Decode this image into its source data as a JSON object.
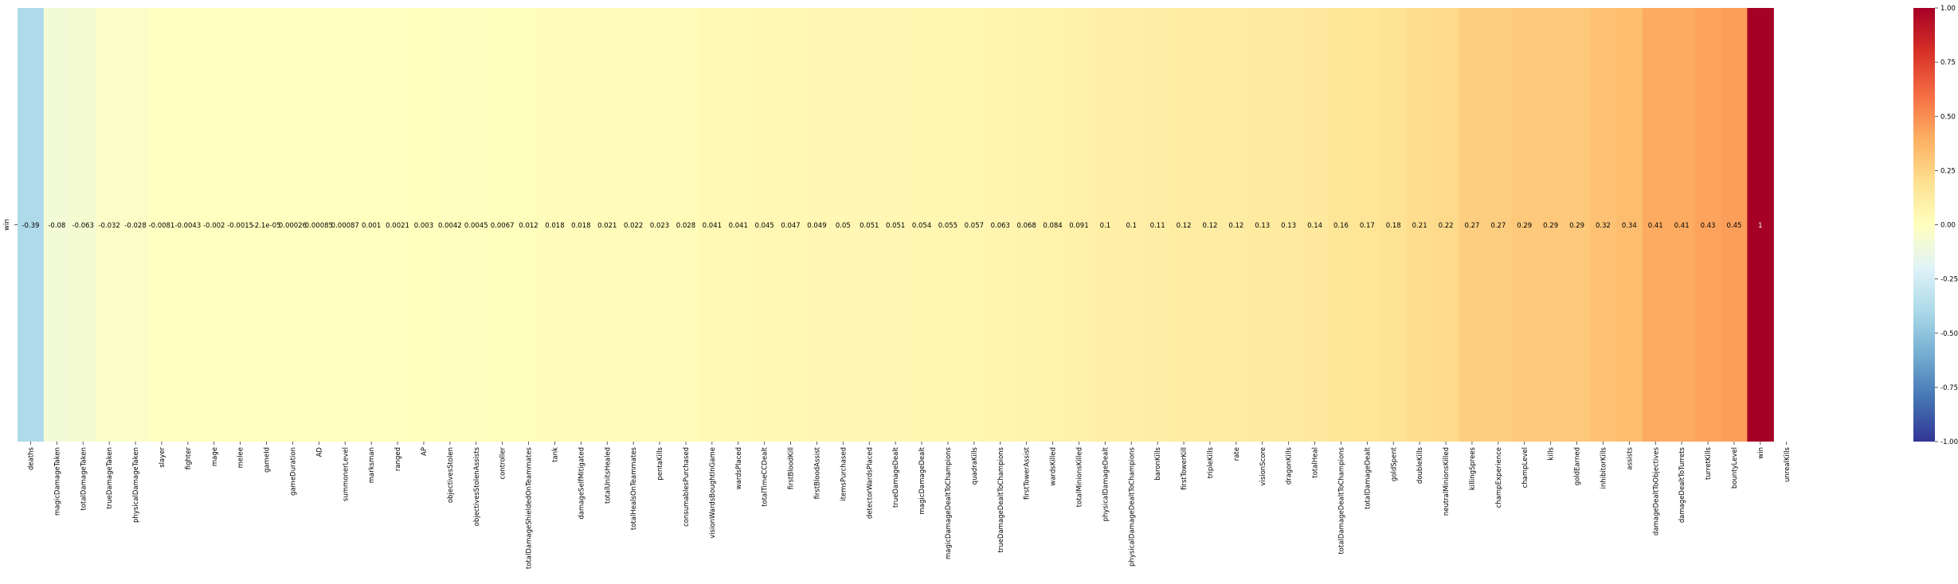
{
  "chart_data": {
    "type": "heatmap",
    "row_label": "win",
    "columns": [
      {
        "name": "deaths",
        "value": -0.39,
        "label": "-0.39"
      },
      {
        "name": "magicDamageTaken",
        "value": -0.08,
        "label": "-0.08"
      },
      {
        "name": "totalDamageTaken",
        "value": -0.063,
        "label": "-0.063"
      },
      {
        "name": "trueDamageTaken",
        "value": -0.032,
        "label": "-0.032"
      },
      {
        "name": "physicalDamageTaken",
        "value": -0.028,
        "label": "-0.028"
      },
      {
        "name": "slayer",
        "value": -0.0081,
        "label": "-0.0081"
      },
      {
        "name": "fighter",
        "value": -0.0043,
        "label": "-0.0043"
      },
      {
        "name": "mage",
        "value": -0.002,
        "label": "-0.002"
      },
      {
        "name": "melee",
        "value": -0.0015,
        "label": "-0.0015"
      },
      {
        "name": "gameId",
        "value": -2.1e-05,
        "label": "-2.1e-05"
      },
      {
        "name": "gameDuration",
        "value": 0.00026,
        "label": "0.00026"
      },
      {
        "name": "AD",
        "value": 0.00085,
        "label": "0.00085"
      },
      {
        "name": "summonerLevel",
        "value": 0.00087,
        "label": "0.00087"
      },
      {
        "name": "marksman",
        "value": 0.001,
        "label": "0.001"
      },
      {
        "name": "ranged",
        "value": 0.0021,
        "label": "0.0021"
      },
      {
        "name": "AP",
        "value": 0.003,
        "label": "0.003"
      },
      {
        "name": "objectivesStolen",
        "value": 0.0042,
        "label": "0.0042"
      },
      {
        "name": "objectivesStolenAssists",
        "value": 0.0045,
        "label": "0.0045"
      },
      {
        "name": "controller",
        "value": 0.0067,
        "label": "0.0067"
      },
      {
        "name": "totalDamageShieldedOnTeammates",
        "value": 0.012,
        "label": "0.012"
      },
      {
        "name": "tank",
        "value": 0.018,
        "label": "0.018"
      },
      {
        "name": "damageSelfMitigated",
        "value": 0.018,
        "label": "0.018"
      },
      {
        "name": "totalUnitsHealed",
        "value": 0.021,
        "label": "0.021"
      },
      {
        "name": "totalHealsOnTeammates",
        "value": 0.022,
        "label": "0.022"
      },
      {
        "name": "pentaKills",
        "value": 0.023,
        "label": "0.023"
      },
      {
        "name": "consumablesPurchased",
        "value": 0.028,
        "label": "0.028"
      },
      {
        "name": "visionWardsBoughtInGame",
        "value": 0.041,
        "label": "0.041"
      },
      {
        "name": "wardsPlaced",
        "value": 0.041,
        "label": "0.041"
      },
      {
        "name": "totalTimeCCDealt",
        "value": 0.045,
        "label": "0.045"
      },
      {
        "name": "firstBloodKill",
        "value": 0.047,
        "label": "0.047"
      },
      {
        "name": "firstBloodAssist",
        "value": 0.049,
        "label": "0.049"
      },
      {
        "name": "itemsPurchased",
        "value": 0.05,
        "label": "0.05"
      },
      {
        "name": "detectorWardsPlaced",
        "value": 0.051,
        "label": "0.051"
      },
      {
        "name": "trueDamageDealt",
        "value": 0.051,
        "label": "0.051"
      },
      {
        "name": "magicDamageDealt",
        "value": 0.054,
        "label": "0.054"
      },
      {
        "name": "magicDamageDealtToChampions",
        "value": 0.055,
        "label": "0.055"
      },
      {
        "name": "quadraKills",
        "value": 0.057,
        "label": "0.057"
      },
      {
        "name": "trueDamageDealtToChampions",
        "value": 0.063,
        "label": "0.063"
      },
      {
        "name": "firstTowerAssist",
        "value": 0.068,
        "label": "0.068"
      },
      {
        "name": "wardsKilled",
        "value": 0.084,
        "label": "0.084"
      },
      {
        "name": "totalMinionsKilled",
        "value": 0.091,
        "label": "0.091"
      },
      {
        "name": "physicalDamageDealt",
        "value": 0.1,
        "label": "0.1"
      },
      {
        "name": "physicalDamageDealtToChampions",
        "value": 0.1,
        "label": "0.1"
      },
      {
        "name": "baronKills",
        "value": 0.11,
        "label": "0.11"
      },
      {
        "name": "firstTowerKill",
        "value": 0.12,
        "label": "0.12"
      },
      {
        "name": "tripleKills",
        "value": 0.12,
        "label": "0.12"
      },
      {
        "name": "rate",
        "value": 0.12,
        "label": "0.12"
      },
      {
        "name": "visionScore",
        "value": 0.13,
        "label": "0.13"
      },
      {
        "name": "dragonKills",
        "value": 0.13,
        "label": "0.13"
      },
      {
        "name": "totalHeal",
        "value": 0.14,
        "label": "0.14"
      },
      {
        "name": "totalDamageDealtToChampions",
        "value": 0.16,
        "label": "0.16"
      },
      {
        "name": "totalDamageDealt",
        "value": 0.17,
        "label": "0.17"
      },
      {
        "name": "goldSpent",
        "value": 0.18,
        "label": "0.18"
      },
      {
        "name": "doubleKills",
        "value": 0.21,
        "label": "0.21"
      },
      {
        "name": "neutralMinionsKilled",
        "value": 0.22,
        "label": "0.22"
      },
      {
        "name": "killingSprees",
        "value": 0.27,
        "label": "0.27"
      },
      {
        "name": "champExperience",
        "value": 0.27,
        "label": "0.27"
      },
      {
        "name": "champLevel",
        "value": 0.29,
        "label": "0.29"
      },
      {
        "name": "kills",
        "value": 0.29,
        "label": "0.29"
      },
      {
        "name": "goldEarned",
        "value": 0.29,
        "label": "0.29"
      },
      {
        "name": "inhibitorKills",
        "value": 0.32,
        "label": "0.32"
      },
      {
        "name": "assists",
        "value": 0.34,
        "label": "0.34"
      },
      {
        "name": "damageDealtToObjectives",
        "value": 0.41,
        "label": "0.41"
      },
      {
        "name": "damageDealtToTurrets",
        "value": 0.41,
        "label": "0.41"
      },
      {
        "name": "turretKills",
        "value": 0.43,
        "label": "0.43"
      },
      {
        "name": "bountyLevel",
        "value": 0.45,
        "label": "0.45"
      },
      {
        "name": "win",
        "value": 1,
        "label": "1"
      },
      {
        "name": "unrealKills",
        "value": null,
        "label": ""
      }
    ],
    "colorbar": {
      "colormap": "RdYlBu_r",
      "range": [
        -1.0,
        1.0
      ],
      "ticks": [
        "1.00",
        "0.75",
        "0.50",
        "0.25",
        "0.00",
        "-0.25",
        "-0.50",
        "-0.75",
        "-1.00"
      ]
    },
    "grid": false,
    "legend": "right"
  }
}
